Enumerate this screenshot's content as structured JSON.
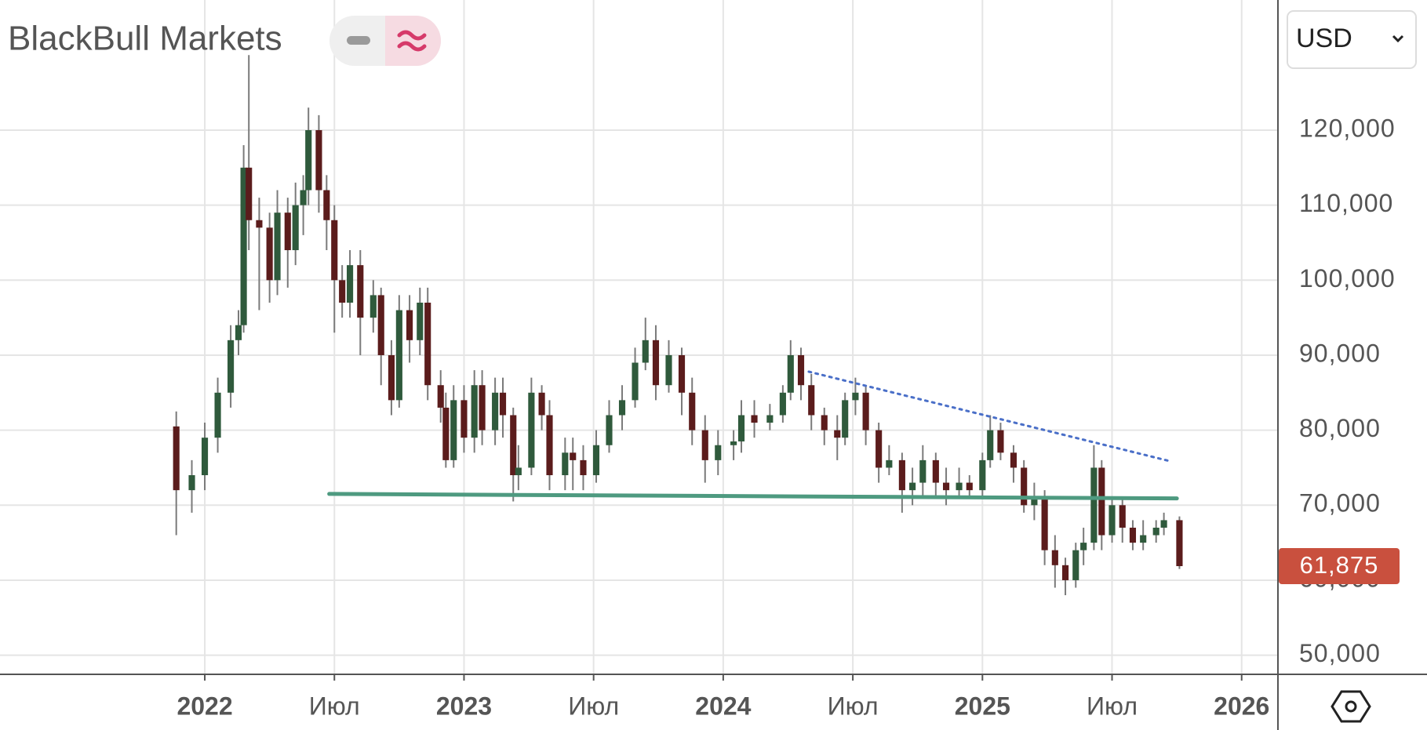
{
  "header": {
    "brand": "BlackBull Markets",
    "currency": "USD"
  },
  "chart_data": {
    "type": "candlestick",
    "x": [
      2021.89,
      2021.95,
      2022.0,
      2022.05,
      2022.1,
      2022.13,
      2022.15,
      2022.17,
      2022.21,
      2022.25,
      2022.28,
      2022.32,
      2022.35,
      2022.38,
      2022.4,
      2022.44,
      2022.47,
      2022.5,
      2022.53,
      2022.56,
      2022.6,
      2022.65,
      2022.68,
      2022.72,
      2022.75,
      2022.79,
      2022.83,
      2022.86,
      2022.91,
      2022.93,
      2022.96,
      2023.0,
      2023.04,
      2023.07,
      2023.12,
      2023.15,
      2023.19,
      2023.21,
      2023.26,
      2023.3,
      2023.33,
      2023.39,
      2023.42,
      2023.46,
      2023.51,
      2023.56,
      2023.61,
      2023.66,
      2023.7,
      2023.74,
      2023.79,
      2023.84,
      2023.88,
      2023.93,
      2023.98,
      2024.04,
      2024.07,
      2024.12,
      2024.18,
      2024.23,
      2024.26,
      2024.3,
      2024.34,
      2024.39,
      2024.44,
      2024.47,
      2024.51,
      2024.55,
      2024.6,
      2024.64,
      2024.69,
      2024.73,
      2024.77,
      2024.82,
      2024.86,
      2024.91,
      2024.95,
      2025.0,
      2025.03,
      2025.07,
      2025.12,
      2025.16,
      2025.2,
      2025.24,
      2025.28,
      2025.32,
      2025.36,
      2025.39,
      2025.43,
      2025.46,
      2025.5,
      2025.54,
      2025.58,
      2025.62,
      2025.67,
      2025.7,
      2025.76
    ],
    "open": [
      80500,
      72000,
      74000,
      79000,
      85000,
      92000,
      94000,
      115000,
      108000,
      107000,
      100000,
      109000,
      104000,
      110000,
      112000,
      120000,
      112000,
      108000,
      100000,
      97000,
      102000,
      95000,
      98000,
      90000,
      84000,
      96000,
      92000,
      97000,
      86000,
      83000,
      76000,
      84000,
      79000,
      86000,
      80000,
      85000,
      82000,
      74000,
      75000,
      85000,
      82000,
      74000,
      77000,
      76000,
      74000,
      78000,
      82000,
      84000,
      89000,
      92000,
      86000,
      90000,
      85000,
      80000,
      76000,
      78000,
      78500,
      82000,
      81000,
      82000,
      85000,
      90000,
      86000,
      82000,
      80000,
      79000,
      84000,
      85000,
      80000,
      75000,
      76000,
      72000,
      73000,
      76000,
      73000,
      72000,
      73000,
      72000,
      76000,
      80000,
      77000,
      75000,
      70000,
      71000,
      64000,
      62000,
      60000,
      64000,
      65000,
      75000,
      66000,
      70000,
      67000,
      65000,
      66000,
      67000,
      68000
    ],
    "high": [
      82500,
      76000,
      81000,
      87000,
      94000,
      96000,
      118000,
      130000,
      111000,
      109000,
      112000,
      111000,
      113000,
      114000,
      123000,
      122000,
      114000,
      110000,
      102000,
      104000,
      104000,
      100000,
      99000,
      92000,
      98000,
      98000,
      99000,
      99000,
      88000,
      85000,
      86000,
      86000,
      88000,
      88000,
      87000,
      87000,
      83000,
      78000,
      87000,
      86000,
      84000,
      79000,
      79000,
      78000,
      80000,
      84000,
      86000,
      91000,
      95000,
      94000,
      92000,
      91000,
      87000,
      82000,
      80000,
      80000,
      84000,
      84000,
      83500,
      86000,
      92000,
      91000,
      87500,
      83000,
      82000,
      85000,
      87000,
      86000,
      81000,
      78000,
      77000,
      75000,
      78000,
      77000,
      75000,
      75000,
      74000,
      77000,
      82000,
      81000,
      78000,
      76000,
      73000,
      72000,
      66000,
      63000,
      65000,
      67000,
      78000,
      76000,
      71000,
      71000,
      68000,
      68000,
      68000,
      69000,
      68500
    ],
    "low": [
      66000,
      69000,
      72000,
      77000,
      83000,
      90000,
      93000,
      104000,
      96000,
      97000,
      98000,
      99000,
      102000,
      106000,
      110000,
      109000,
      104000,
      93000,
      95000,
      95000,
      90000,
      93000,
      86000,
      82000,
      83000,
      89000,
      90000,
      84000,
      81000,
      75000,
      75000,
      77000,
      77000,
      78000,
      78000,
      79000,
      70500,
      72000,
      74000,
      80000,
      72000,
      72000,
      72000,
      72000,
      73000,
      77000,
      80000,
      83000,
      88000,
      84000,
      85000,
      82000,
      78000,
      73000,
      74000,
      76000,
      77000,
      79000,
      80000,
      81000,
      84000,
      84000,
      80000,
      78000,
      76000,
      78000,
      82000,
      78000,
      73000,
      74000,
      69000,
      70000,
      71000,
      71000,
      70000,
      71000,
      71000,
      71000,
      75000,
      76000,
      73000,
      69000,
      68000,
      62000,
      59000,
      58000,
      59000,
      62000,
      64000,
      64000,
      65000,
      65000,
      64000,
      64000,
      65000,
      66000,
      61500
    ],
    "close": [
      72000,
      74000,
      79000,
      85000,
      92000,
      94000,
      115000,
      108000,
      107000,
      100000,
      109000,
      104000,
      110000,
      112000,
      120000,
      112000,
      108000,
      100000,
      97000,
      102000,
      95000,
      98000,
      90000,
      84000,
      96000,
      92000,
      97000,
      86000,
      83000,
      76000,
      84000,
      79000,
      86000,
      80000,
      85000,
      82000,
      74000,
      75000,
      85000,
      82000,
      74000,
      77000,
      76000,
      74000,
      78000,
      82000,
      84000,
      89000,
      92000,
      86000,
      90000,
      85000,
      80000,
      76000,
      78000,
      78500,
      82000,
      81000,
      82000,
      85000,
      90000,
      86000,
      82000,
      80000,
      79000,
      84000,
      85000,
      80000,
      75000,
      76000,
      72000,
      73000,
      76000,
      73000,
      72000,
      73000,
      72000,
      76000,
      80000,
      77000,
      75000,
      70000,
      71000,
      64000,
      62000,
      60000,
      64000,
      65000,
      75000,
      66000,
      70000,
      67000,
      65000,
      66000,
      67000,
      68000,
      61875
    ],
    "up_color": "#2f5a3c",
    "down_color": "#5b1c1c",
    "wick_color": "#7a7a7a",
    "xlim": [
      2021.21,
      2026.14
    ],
    "xticks": [
      {
        "value": 2022,
        "label": "2022"
      },
      {
        "value": 2022.5,
        "label": "Июл"
      },
      {
        "value": 2023,
        "label": "2023"
      },
      {
        "value": 2023.5,
        "label": "Июл"
      },
      {
        "value": 2024,
        "label": "2024"
      },
      {
        "value": 2024.5,
        "label": "Июл"
      },
      {
        "value": 2025,
        "label": "2025"
      },
      {
        "value": 2025.5,
        "label": "Июл"
      },
      {
        "value": 2026,
        "label": "2026"
      }
    ],
    "ylim": [
      47450,
      137350
    ],
    "yticks": [
      {
        "value": 50000,
        "label": "50,000"
      },
      {
        "value": 60000,
        "label": "60,000"
      },
      {
        "value": 70000,
        "label": "70,000"
      },
      {
        "value": 80000,
        "label": "80,000"
      },
      {
        "value": 90000,
        "label": "90,000"
      },
      {
        "value": 100000,
        "label": "100,000"
      },
      {
        "value": 110000,
        "label": "110,000"
      },
      {
        "value": 120000,
        "label": "120,000"
      }
    ],
    "grid": true,
    "last_price": {
      "value": 61875,
      "label": "61,875",
      "color": "#c9503e"
    },
    "trendlines": [
      {
        "x": [
          2022.48,
          2025.75
        ],
        "y": [
          71500,
          70900
        ],
        "color": "#4e9a80",
        "style": "solid"
      },
      {
        "x": [
          2024.33,
          2025.72
        ],
        "y": [
          87800,
          75900
        ],
        "color": "#4a6fc8",
        "style": "dotted"
      }
    ]
  }
}
